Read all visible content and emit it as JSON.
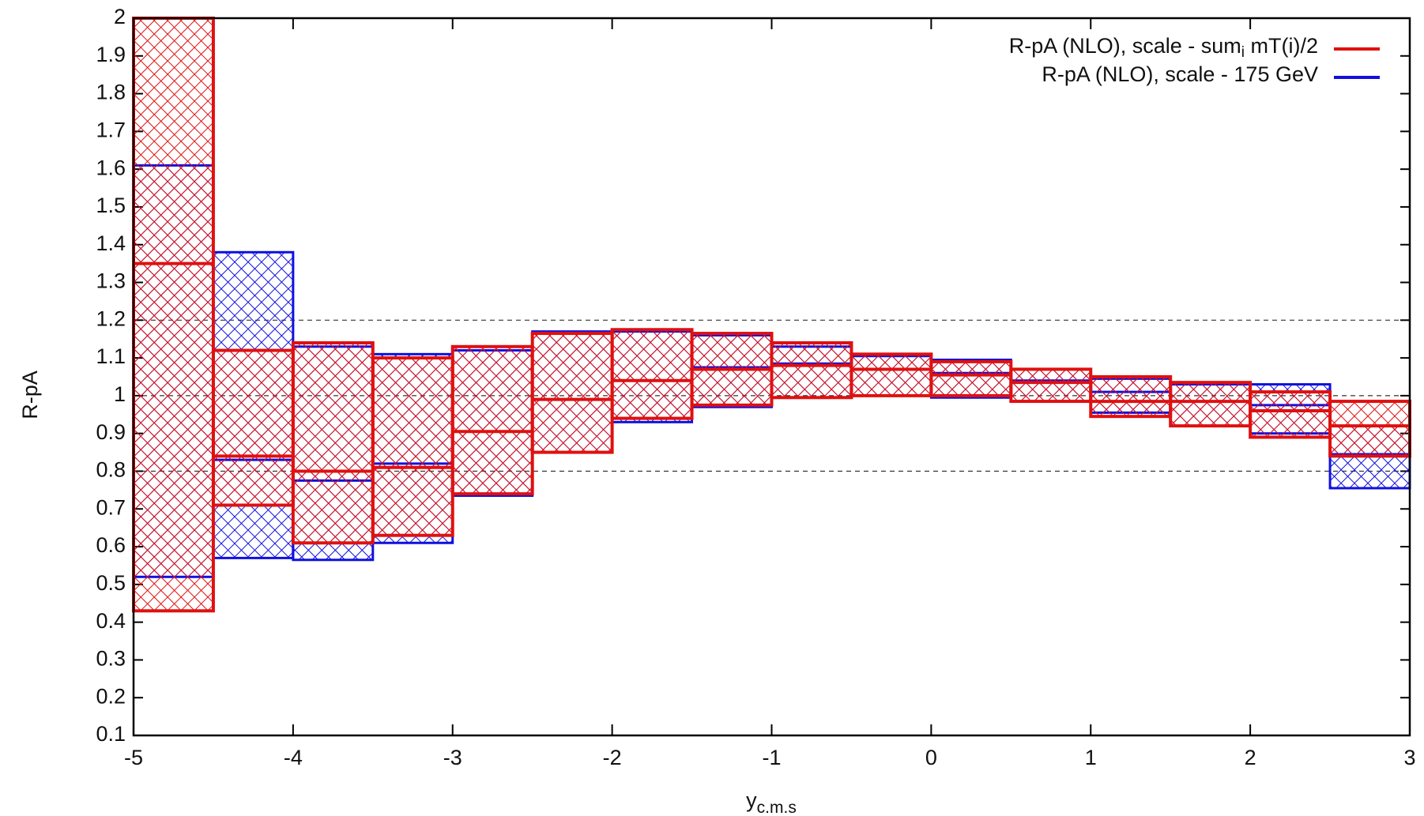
{
  "chart_data": {
    "type": "band_histogram",
    "y_label": "R-pA",
    "x_label": "y",
    "x_label_subscript": "c.m.s",
    "bins": [
      -5,
      -4.5,
      -4,
      -3.5,
      -3,
      -2.5,
      -2,
      -1.5,
      -1,
      -0.5,
      0,
      0.5,
      1,
      1.5,
      2,
      2.5,
      3
    ],
    "series": [
      {
        "name": "R-pA (NLO), scale - 175 GeV",
        "color": "#1010e0",
        "low": [
          0.52,
          0.57,
          0.565,
          0.61,
          0.735,
          0.85,
          0.93,
          0.97,
          0.995,
          1.0,
          0.995,
          0.985,
          0.955,
          0.92,
          0.9,
          0.755
        ],
        "mid": [
          null,
          0.83,
          0.775,
          0.82,
          0.905,
          0.99,
          1.04,
          1.075,
          1.085,
          1.07,
          1.06,
          1.04,
          1.01,
          0.985,
          0.975,
          0.845
        ],
        "high": [
          1.61,
          1.38,
          1.13,
          1.11,
          1.12,
          1.17,
          1.17,
          1.16,
          1.13,
          1.105,
          1.095,
          1.07,
          1.045,
          1.03,
          1.03,
          0.92
        ]
      },
      {
        "name": "R-pA (NLO), scale - sum",
        "name_subscript": "i",
        "name_suffix": " mT(i)/2",
        "color": "#e01010",
        "low": [
          0.43,
          0.71,
          0.61,
          0.63,
          0.74,
          0.85,
          0.94,
          0.975,
          0.995,
          1.0,
          1.0,
          0.985,
          0.945,
          0.92,
          0.89,
          0.84
        ],
        "mid": [
          1.35,
          0.84,
          0.8,
          0.81,
          0.905,
          0.99,
          1.04,
          1.07,
          1.08,
          1.07,
          1.055,
          1.035,
          0.985,
          0.985,
          0.96,
          0.92
        ],
        "high": [
          2,
          1.12,
          1.14,
          1.1,
          1.13,
          1.165,
          1.175,
          1.165,
          1.14,
          1.11,
          1.09,
          1.07,
          1.05,
          1.035,
          1.01,
          0.985
        ]
      }
    ],
    "reference_lines": [
      0.8,
      1,
      1.2
    ],
    "xlim": [
      -5,
      3
    ],
    "xticks": [
      -5,
      -4,
      -3,
      -2,
      -1,
      0,
      1,
      2,
      3
    ],
    "ylim": [
      0.1,
      2
    ],
    "yticks": [
      0.1,
      0.2,
      0.3,
      0.4,
      0.5,
      0.6,
      0.7,
      0.8,
      0.9,
      1,
      1.1,
      1.2,
      1.3,
      1.4,
      1.5,
      1.6,
      1.7,
      1.8,
      1.9,
      2
    ],
    "legend": "top-right"
  }
}
